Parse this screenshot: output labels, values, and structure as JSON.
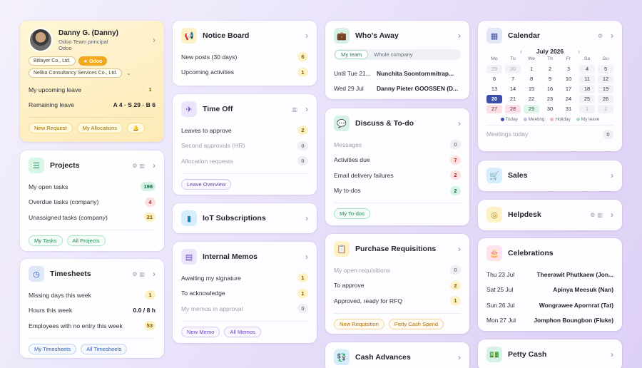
{
  "profile": {
    "name": "Danny G. (Danny)",
    "role": "Odoo Team principal",
    "company": "Odoo",
    "tags": [
      "Bitlayer Co., Ltd.",
      "★ Odoo",
      "Nelika Consultancy Services Co., Ltd."
    ],
    "rows": [
      {
        "label": "My upcoming leave",
        "value": "1"
      },
      {
        "label": "Remaining leave",
        "value": "A 4 · S 29 · B 6"
      }
    ],
    "buttons": [
      "New Request",
      "My Allocations"
    ],
    "bell": "🔔"
  },
  "projects": {
    "title": "Projects",
    "rows": [
      {
        "label": "My open tasks",
        "value": "198"
      },
      {
        "label": "Overdue tasks (company)",
        "value": "4"
      },
      {
        "label": "Unassigned tasks (company)",
        "value": "21"
      }
    ],
    "buttons": [
      "My Tasks",
      "All Projects"
    ]
  },
  "timesheets": {
    "title": "Timesheets",
    "rows": [
      {
        "label": "Missing days this week",
        "value": "1"
      },
      {
        "label": "Hours this week",
        "value": "0.0 / 8 h"
      },
      {
        "label": "Employees with no entry this week",
        "value": "53"
      }
    ],
    "buttons": [
      "My Timesheets",
      "All Timesheets"
    ]
  },
  "notice": {
    "title": "Notice Board",
    "rows": [
      {
        "label": "New posts (30 days)",
        "value": "6"
      },
      {
        "label": "Upcoming activities",
        "value": "1"
      }
    ]
  },
  "timeoff": {
    "title": "Time Off",
    "rows": [
      {
        "label": "Leaves to approve",
        "value": "2"
      },
      {
        "label": "Second approvals (HR)",
        "value": "0"
      },
      {
        "label": "Allocation requests",
        "value": "0"
      }
    ],
    "buttons": [
      "Leave Overview"
    ]
  },
  "iot": {
    "title": "IoT Subscriptions"
  },
  "memos": {
    "title": "Internal Memos",
    "rows": [
      {
        "label": "Awaiting my signature",
        "value": "1"
      },
      {
        "label": "To acknowledge",
        "value": "1"
      },
      {
        "label": "My memos in approval",
        "value": "0"
      }
    ],
    "buttons": [
      "New Memo",
      "All Memos"
    ]
  },
  "away": {
    "title": "Who's Away",
    "tabs": [
      "My team",
      "Whole company"
    ],
    "rows": [
      {
        "date": "Until Tue 21...",
        "name": "Nunchita Soontornmitrap..."
      },
      {
        "date": "Wed 29 Jul",
        "name": "Danny Pieter GOOSSEN (D..."
      }
    ]
  },
  "discuss": {
    "title": "Discuss & To-do",
    "rows": [
      {
        "label": "Messages",
        "value": "0"
      },
      {
        "label": "Activities due",
        "value": "7"
      },
      {
        "label": "Email delivery failures",
        "value": "2"
      },
      {
        "label": "My to-dos",
        "value": "2"
      }
    ],
    "buttons": [
      "My To-dos"
    ]
  },
  "purchase": {
    "title": "Purchase Requisitions",
    "rows": [
      {
        "label": "My open requisitions",
        "value": "0"
      },
      {
        "label": "To approve",
        "value": "2"
      },
      {
        "label": "Approved, ready for RFQ",
        "value": "1"
      }
    ],
    "buttons": [
      "New Requisition",
      "Petty Cash Spend"
    ]
  },
  "cash": {
    "title": "Cash Advances"
  },
  "calendar": {
    "title": "Calendar",
    "month": "July 2026",
    "weekdays": [
      "Mo",
      "Tu",
      "We",
      "Th",
      "Fr",
      "Sa",
      "Su"
    ],
    "days": [
      [
        "29",
        "30",
        "1",
        "2",
        "3",
        "4",
        "5"
      ],
      [
        "6",
        "7",
        "8",
        "9",
        "10",
        "11",
        "12"
      ],
      [
        "13",
        "14",
        "15",
        "16",
        "17",
        "18",
        "19"
      ],
      [
        "20",
        "21",
        "22",
        "23",
        "24",
        "25",
        "26"
      ],
      [
        "27",
        "28",
        "29",
        "30",
        "31",
        "1",
        "2"
      ]
    ],
    "legend": [
      "Today",
      "Meeting",
      "Holiday",
      "My leave"
    ],
    "meetings_label": "Meetings today",
    "meetings_value": "0"
  },
  "sales": {
    "title": "Sales"
  },
  "helpdesk": {
    "title": "Helpdesk"
  },
  "celebrations": {
    "title": "Celebrations",
    "rows": [
      {
        "date": "Thu 23 Jul",
        "name": "Theerawit Phutkaew (Jon..."
      },
      {
        "date": "Sat 25 Jul",
        "name": "Apinya Meesuk (Nan)"
      },
      {
        "date": "Sun 26 Jul",
        "name": "Wongrawee Apornrat (Tat)"
      },
      {
        "date": "Mon 27 Jul",
        "name": "Jomphon Boungbon (Fluke)"
      }
    ]
  },
  "petty": {
    "title": "Petty Cash"
  },
  "icons": {
    "projects": "list-icon",
    "timesheets": "clock-icon",
    "notice": "megaphone-icon",
    "timeoff": "plane-icon",
    "iot": "device-icon",
    "memos": "document-icon",
    "away": "briefcase-icon",
    "discuss": "chat-icon",
    "purchase": "clipboard-icon",
    "cash": "money-icon",
    "calendar": "calendar-icon",
    "sales": "cart-icon",
    "helpdesk": "lifebuoy-icon",
    "celebrations": "cake-icon",
    "petty": "cash-icon"
  }
}
